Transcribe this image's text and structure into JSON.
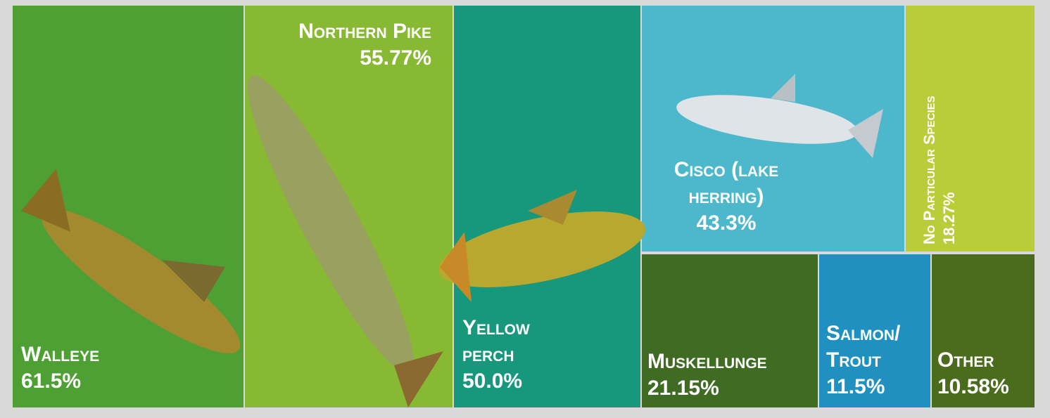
{
  "chart_data": {
    "type": "treemap",
    "categories": [
      "Walleye",
      "Northern Pike",
      "Yellow perch",
      "Cisco (lake herring)",
      "No Particular Species",
      "Muskellunge",
      "Salmon/ Trout",
      "Other"
    ],
    "values": [
      61.5,
      55.77,
      50.0,
      43.3,
      18.27,
      21.15,
      11.5,
      10.58
    ],
    "value_labels": [
      "61.5%",
      "55.77%",
      "50.0%",
      "43.3%",
      "18.27%",
      "21.15%",
      "11.5%",
      "10.58%"
    ],
    "colors": [
      "#4fa034",
      "#87b933",
      "#17977b",
      "#4db8cc",
      "#b9cd3b",
      "#3f6b23",
      "#2090c0",
      "#4b6b1d"
    ]
  }
}
